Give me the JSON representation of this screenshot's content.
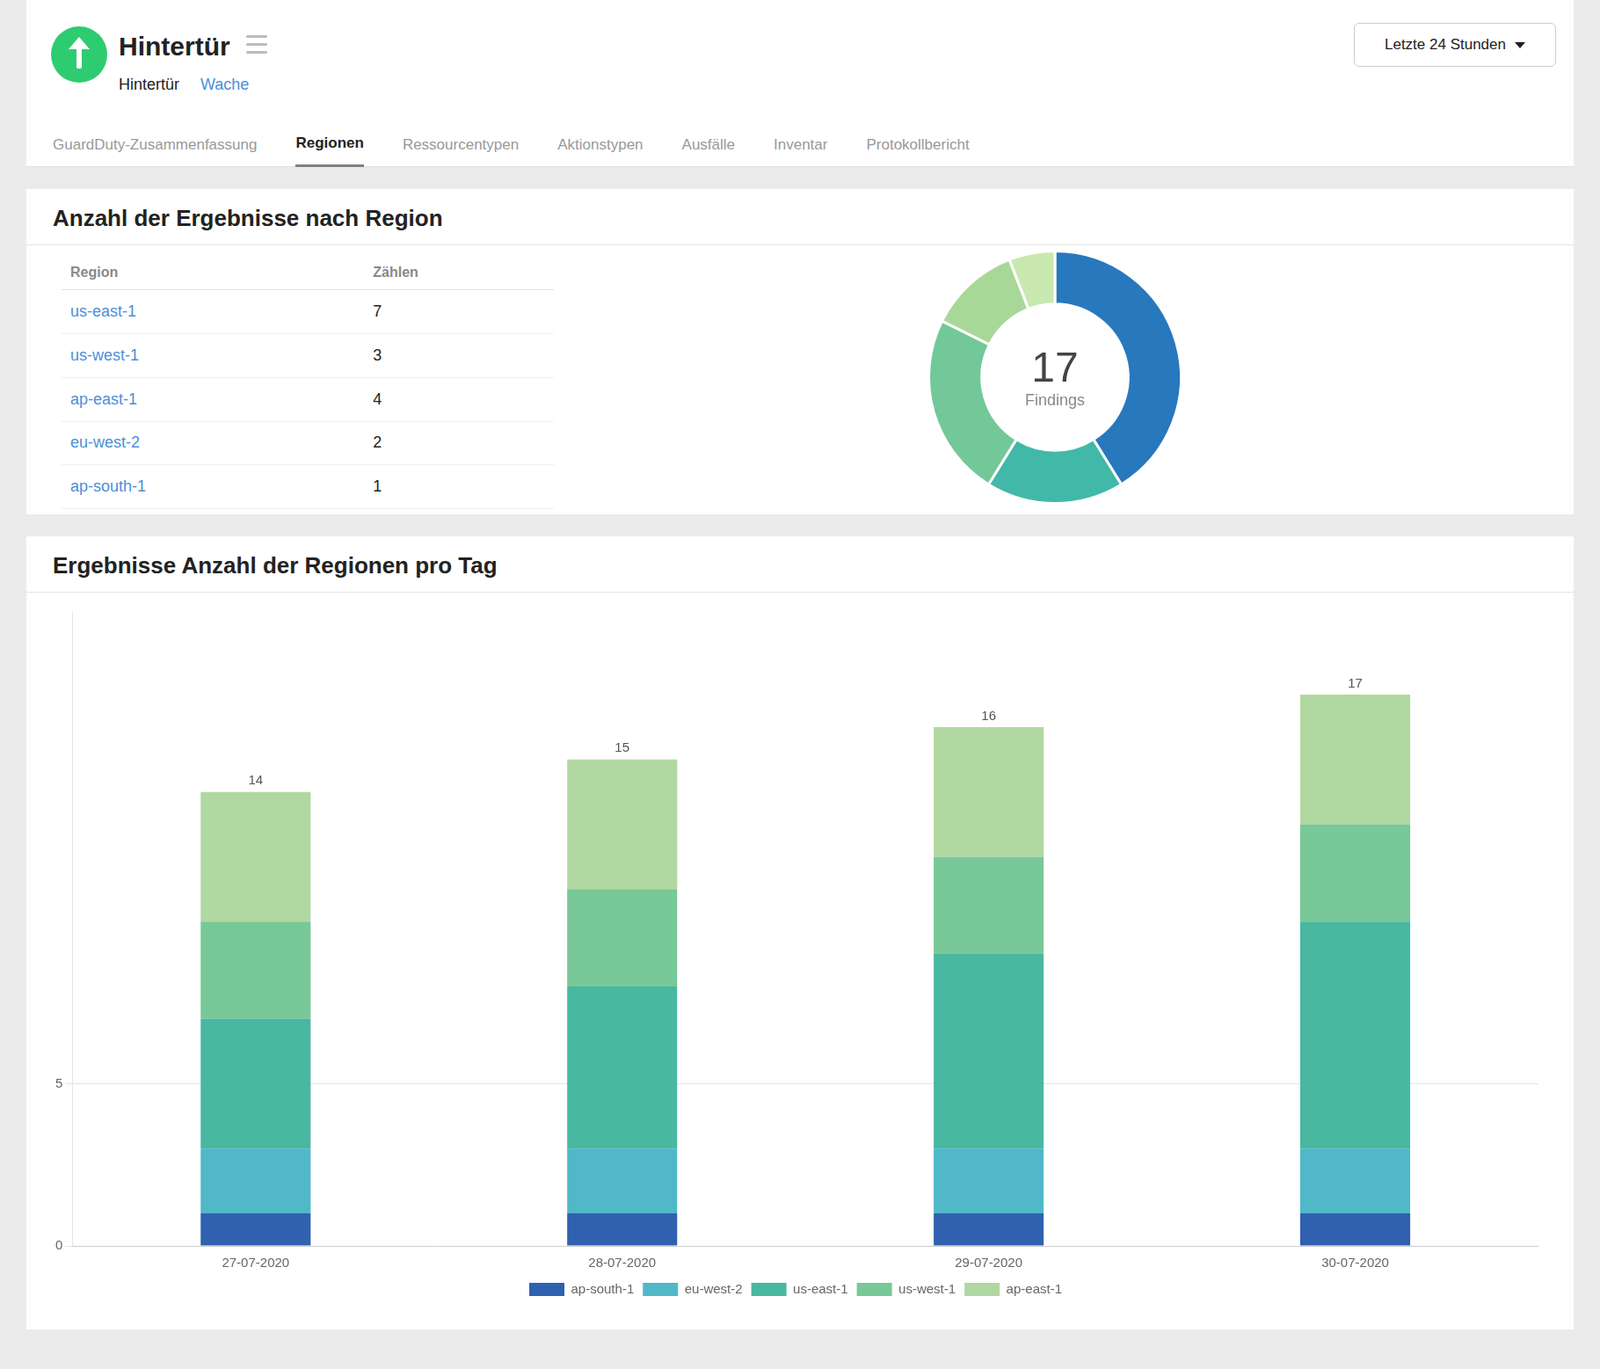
{
  "page": {
    "title": "Hintertür",
    "subtitle_items": [
      "Hintertür",
      "Wache"
    ],
    "nav_tabs": [
      "GuardDuty-Zusammenfassung",
      "Regionen",
      "Ressourcentypen",
      "Aktionstypen",
      "Ausfälle",
      "Inventar",
      "Protokollbericht"
    ],
    "active_tab": "Regionen",
    "dropdown_label": "Letzte 24 Stunden"
  },
  "chart_data": [
    {
      "type": "doughnut",
      "title": "Anzahl der Ergebnisse nach Region",
      "table_headers": [
        "Region",
        "Zählen"
      ],
      "categories": [
        "us-east-1",
        "us-west-1",
        "ap-east-1",
        "eu-west-2",
        "ap-south-1"
      ],
      "values": [
        7,
        3,
        4,
        2,
        1
      ],
      "colors": [
        "#2878be",
        "#42b8a8",
        "#72c898",
        "#a8d898",
        "#c8e8b0"
      ],
      "total": 17,
      "annotations": [
        "Findings"
      ]
    },
    {
      "type": "bar",
      "stacked": true,
      "title": "Ergebnisse Anzahl der Regionen pro Tag",
      "categories": [
        "27-07-2020",
        "28-07-2020",
        "29-07-2020",
        "30-07-2020"
      ],
      "series": [
        {
          "name": "ap-south-1",
          "color": "#3060b0",
          "values": [
            1,
            1,
            1,
            1
          ]
        },
        {
          "name": "eu-west-2",
          "color": "#50b8c8",
          "values": [
            2,
            2,
            2,
            2
          ]
        },
        {
          "name": "us-east-1",
          "color": "#48b8a0",
          "values": [
            4,
            5,
            6,
            7
          ]
        },
        {
          "name": "us-west-1",
          "color": "#78c898",
          "values": [
            3,
            3,
            3,
            3
          ]
        },
        {
          "name": "ap-east-1",
          "color": "#b0d8a0",
          "values": [
            4,
            4,
            4,
            4
          ]
        }
      ],
      "totals": [
        14,
        15,
        16,
        17
      ],
      "ylim": [
        0,
        19.55
      ],
      "yticks": [
        0,
        5
      ],
      "grid": true,
      "legend": "bottom"
    }
  ]
}
